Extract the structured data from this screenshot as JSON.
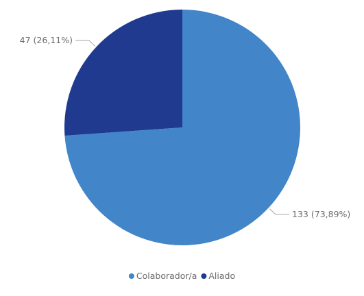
{
  "chart_data": {
    "type": "pie",
    "slices": [
      {
        "label": "Colaborador/a",
        "value": 133,
        "data_label": "133 (73,89%)",
        "color": "#4285c9"
      },
      {
        "label": "Aliado",
        "value": 47,
        "data_label": "47 (26,11%)",
        "color": "#1f3a8f"
      }
    ],
    "legend": {
      "position": "bottom-center",
      "entries": [
        "Colaborador/a",
        "Aliado"
      ]
    }
  }
}
